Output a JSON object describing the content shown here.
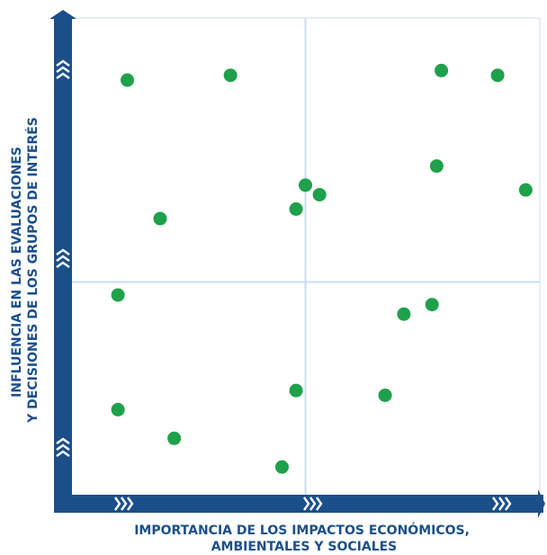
{
  "chart_data": {
    "type": "scatter",
    "xlabel": [
      "IMPORTANCIA DE LOS IMPACTOS ECONÓMICOS,",
      "AMBIENTALES Y SOCIALES"
    ],
    "ylabel": [
      "INFLUENCIA EN LAS EVALUACIONES",
      "Y DECISIONES DE LOS GRUPOS DE INTERÉS"
    ],
    "xlim": [
      0,
      10
    ],
    "ylim": [
      0,
      10
    ],
    "grid": "quadrants",
    "colors": {
      "axis": "#1b4f8a",
      "point": "#1fa04a",
      "grid": "#c9ddf0",
      "chevron": "#ffffff"
    },
    "points": [
      {
        "x": 1.2,
        "y": 8.7
      },
      {
        "x": 3.4,
        "y": 8.8
      },
      {
        "x": 7.9,
        "y": 8.9
      },
      {
        "x": 9.1,
        "y": 8.8
      },
      {
        "x": 7.8,
        "y": 6.9
      },
      {
        "x": 9.7,
        "y": 6.4
      },
      {
        "x": 5.0,
        "y": 6.5
      },
      {
        "x": 5.3,
        "y": 6.3
      },
      {
        "x": 4.8,
        "y": 6.0
      },
      {
        "x": 1.9,
        "y": 5.8
      },
      {
        "x": 1.0,
        "y": 4.2
      },
      {
        "x": 7.7,
        "y": 4.0
      },
      {
        "x": 7.1,
        "y": 3.8
      },
      {
        "x": 4.8,
        "y": 2.2
      },
      {
        "x": 6.7,
        "y": 2.1
      },
      {
        "x": 1.0,
        "y": 1.8
      },
      {
        "x": 2.2,
        "y": 1.2
      },
      {
        "x": 4.5,
        "y": 0.6
      }
    ]
  }
}
